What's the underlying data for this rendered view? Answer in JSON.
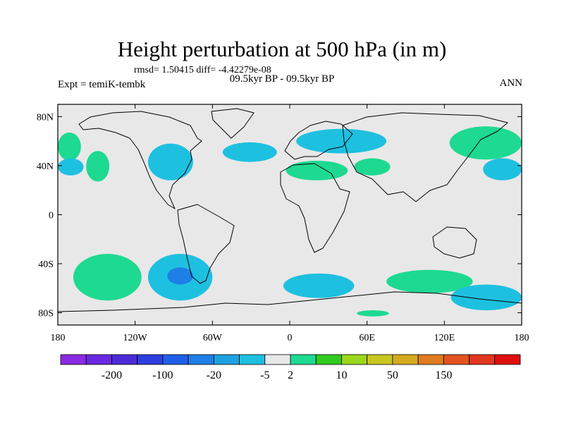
{
  "chart_data": {
    "type": "heatmap",
    "title": "Height perturbation at 500 hPa (in m)",
    "stats": "rmsd= 1.50415 diff= -4.42279e-08",
    "left_label": "Expt = temiK-tembk",
    "center_label": "09.5kyr BP - 09.5kyr BP",
    "right_label": "ANN",
    "xlim": [
      -180,
      180
    ],
    "ylim": [
      -90,
      90
    ],
    "x_ticks": [
      {
        "value": -180,
        "label": "180"
      },
      {
        "value": -120,
        "label": "120W"
      },
      {
        "value": -60,
        "label": "60W"
      },
      {
        "value": 0,
        "label": "0"
      },
      {
        "value": 60,
        "label": "60E"
      },
      {
        "value": 120,
        "label": "120E"
      },
      {
        "value": 180,
        "label": "180"
      }
    ],
    "y_ticks": [
      {
        "value": 80,
        "label": "80N"
      },
      {
        "value": 40,
        "label": "40N"
      },
      {
        "value": 0,
        "label": "0"
      },
      {
        "value": -40,
        "label": "40S"
      },
      {
        "value": -80,
        "label": "80S"
      }
    ],
    "colorbar": {
      "colors": [
        "#8a2be2",
        "#6a28e0",
        "#4b2bd8",
        "#2e3de0",
        "#1f5fe8",
        "#1e7fe6",
        "#1ea1e0",
        "#1ec0e0",
        "#e8e8e8",
        "#1ed991",
        "#31cb1f",
        "#9bd61f",
        "#c8c61f",
        "#d6aa1f",
        "#e07b1f",
        "#e2541f",
        "#e2361f",
        "#e00f0f"
      ],
      "labels": [
        "-200",
        "-100",
        "-20",
        "-5",
        "2",
        "10",
        "50",
        "150"
      ],
      "label_after_box": [
        1,
        3,
        5,
        7,
        8,
        10,
        12,
        14
      ]
    },
    "default_color": "#e8e8e8",
    "regions": [
      {
        "name": "north-pacific-west-positive",
        "lon_min": -180,
        "lon_max": -162,
        "lat_min": 44,
        "lat_max": 67,
        "value": 3
      },
      {
        "name": "north-pacific-west-negative",
        "lon_min": -180,
        "lon_max": -160,
        "lat_min": 32,
        "lat_max": 46,
        "value": -3
      },
      {
        "name": "north-pacific-east-positive",
        "lon_min": -158,
        "lon_max": -140,
        "lat_min": 27,
        "lat_max": 52,
        "value": 3
      },
      {
        "name": "north-america-negative",
        "lon_min": -110,
        "lon_max": -75,
        "lat_min": 28,
        "lat_max": 58,
        "value": -3
      },
      {
        "name": "north-atlantic-negative",
        "lon_min": -52,
        "lon_max": -10,
        "lat_min": 43,
        "lat_max": 59,
        "value": -3
      },
      {
        "name": "north-sea-negative",
        "lon_min": 5,
        "lon_max": 75,
        "lat_min": 50,
        "lat_max": 70,
        "value": -3
      },
      {
        "name": "mediterranean-positive",
        "lon_min": -3,
        "lon_max": 45,
        "lat_min": 28,
        "lat_max": 44,
        "value": 3
      },
      {
        "name": "central-asia-positive",
        "lon_min": 50,
        "lon_max": 78,
        "lat_min": 32,
        "lat_max": 46,
        "value": 3
      },
      {
        "name": "east-asia-positive",
        "lon_min": 124,
        "lon_max": 180,
        "lat_min": 45,
        "lat_max": 72,
        "value": 3
      },
      {
        "name": "north-pacific-negative",
        "lon_min": 150,
        "lon_max": 180,
        "lat_min": 28,
        "lat_max": 46,
        "value": -3
      },
      {
        "name": "south-pacific-west-positive",
        "lon_min": -168,
        "lon_max": -115,
        "lat_min": -70,
        "lat_max": -32,
        "value": 3
      },
      {
        "name": "south-pacific-east-negative",
        "lon_min": -110,
        "lon_max": -60,
        "lat_min": -70,
        "lat_max": -32,
        "value": -3
      },
      {
        "name": "south-pacific-east-core",
        "lon_min": -95,
        "lon_max": -75,
        "lat_min": -57,
        "lat_max": -43,
        "value": -10
      },
      {
        "name": "south-atlantic-negative",
        "lon_min": -5,
        "lon_max": 50,
        "lat_min": -68,
        "lat_max": -48,
        "value": -3
      },
      {
        "name": "south-indian-positive",
        "lon_min": 75,
        "lon_max": 142,
        "lat_min": -64,
        "lat_max": -45,
        "value": 3
      },
      {
        "name": "south-pacific-far-negative",
        "lon_min": 125,
        "lon_max": 180,
        "lat_min": -78,
        "lat_max": -57,
        "value": -3
      },
      {
        "name": "antarctic-positive",
        "lon_min": 52,
        "lon_max": 77,
        "lat_min": -83,
        "lat_max": -78,
        "value": 3
      }
    ]
  }
}
